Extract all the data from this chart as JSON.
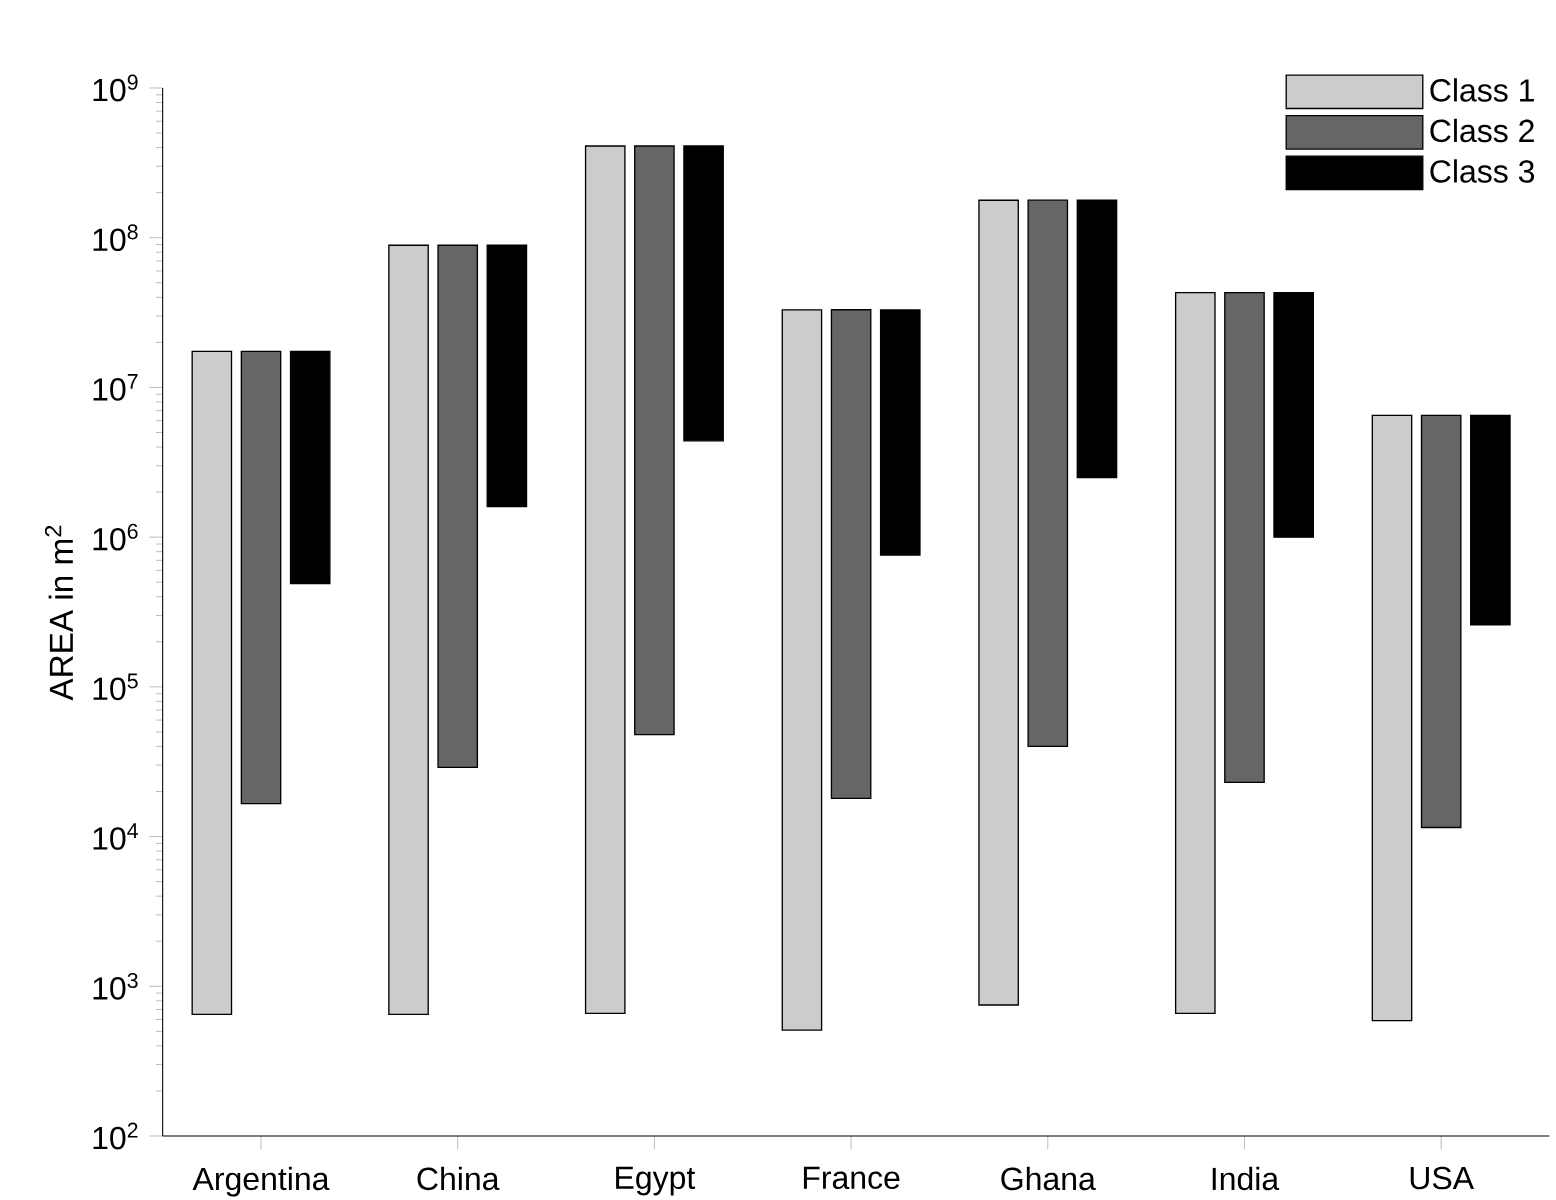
{
  "chart_data": {
    "type": "bar",
    "ylabel": "AREA in m$^{2}$",
    "log": true,
    "legend": "top right",
    "categories": [
      "Argentina",
      "China",
      "Egypt",
      "France",
      "Ghana",
      "India",
      "USA"
    ],
    "ylim": [
      100,
      1000000000
    ],
    "yticks": [
      {
        "value": 100,
        "label": "10$^{2}$"
      },
      {
        "value": 1000,
        "label": "10$^{3}$"
      },
      {
        "value": 10000,
        "label": "10$^{4}$"
      },
      {
        "value": 100000,
        "label": "10$^{5}$"
      },
      {
        "value": 1000000,
        "label": "10$^{6}$"
      },
      {
        "value": 10000000,
        "label": "10$^{7}$"
      },
      {
        "value": 100000000,
        "label": "10$^{8}$"
      },
      {
        "value": 1000000000,
        "label": "10$^{9}$"
      }
    ],
    "series": [
      {
        "name": "Class 1",
        "color": "#cccccc",
        "base": [
          650,
          650,
          660,
          510,
          750,
          660,
          590
        ],
        "values": [
          17400000,
          89000000,
          410000000,
          33000000,
          178000000,
          43000000,
          6500000
        ]
      },
      {
        "name": "Class 2",
        "color": "#666666",
        "base": [
          16600,
          29000,
          48000,
          18000,
          40000,
          23000,
          11500
        ],
        "values": [
          17380000,
          89000000,
          410000000,
          33000000,
          178000000,
          43000000,
          6490000
        ]
      },
      {
        "name": "Class 3",
        "color": "#000000",
        "base": [
          490000,
          1600000,
          4400000,
          760000,
          2500000,
          1000000,
          260000
        ],
        "values": [
          16900000,
          87400000,
          406000000,
          32200000,
          175500000,
          42000000,
          6240000
        ]
      }
    ]
  }
}
